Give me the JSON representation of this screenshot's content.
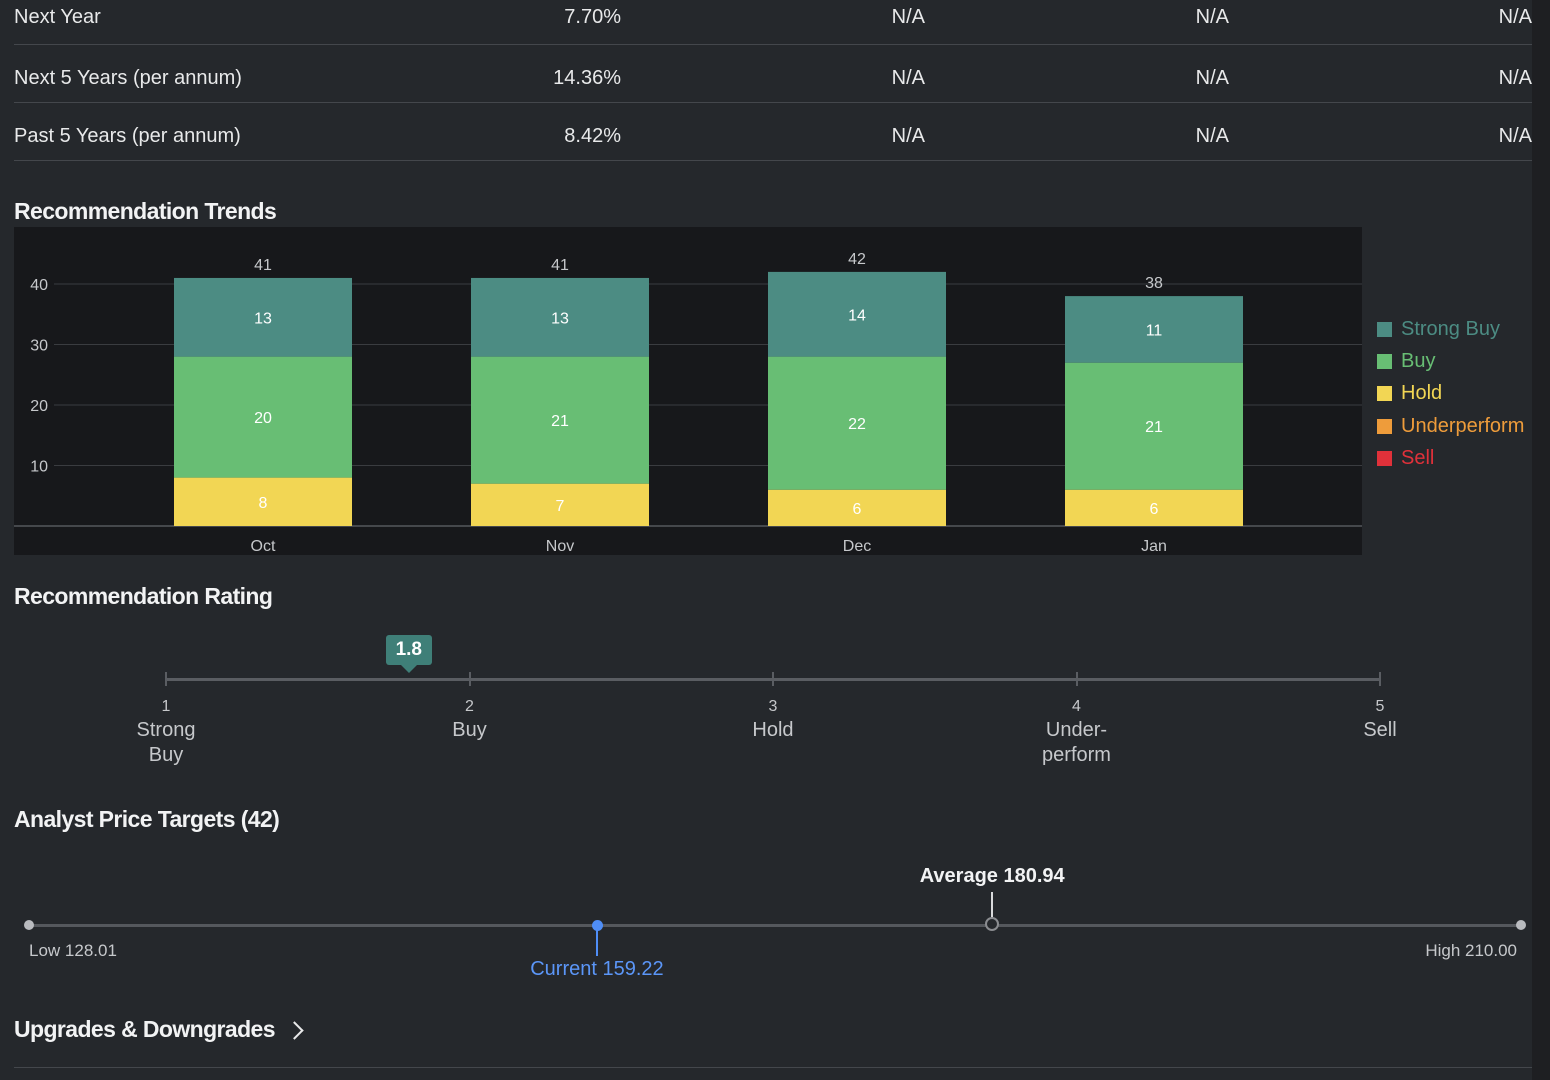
{
  "growth_rows": [
    {
      "label": "Next Year",
      "values": [
        "7.70%",
        "N/A",
        "N/A",
        "N/A"
      ]
    },
    {
      "label": "Next 5 Years (per annum)",
      "values": [
        "14.36%",
        "N/A",
        "N/A",
        "N/A"
      ]
    },
    {
      "label": "Past 5 Years (per annum)",
      "values": [
        "8.42%",
        "N/A",
        "N/A",
        "N/A"
      ]
    }
  ],
  "sections": {
    "trends": "Recommendation Trends",
    "rating": "Recommendation Rating",
    "targets": "Analyst Price Targets (42)",
    "updowns": "Upgrades & Downgrades"
  },
  "chart_data": {
    "type": "bar",
    "stacked": true,
    "title": "Recommendation Trends",
    "categories": [
      "Oct",
      "Nov",
      "Dec",
      "Jan"
    ],
    "series": [
      {
        "name": "Strong Buy",
        "color": "#4c8c83",
        "values": [
          13,
          13,
          14,
          11
        ]
      },
      {
        "name": "Buy",
        "color": "#68be74",
        "values": [
          20,
          21,
          22,
          21
        ]
      },
      {
        "name": "Hold",
        "color": "#f2d654",
        "values": [
          8,
          7,
          6,
          6
        ]
      },
      {
        "name": "Underperform",
        "color": "#ee9c3b",
        "values": [
          0,
          0,
          0,
          0
        ]
      },
      {
        "name": "Sell",
        "color": "#e0313a",
        "values": [
          0,
          0,
          0,
          0
        ]
      }
    ],
    "totals": [
      41,
      41,
      42,
      38
    ],
    "yticks": [
      10,
      20,
      30,
      40
    ],
    "ylim": [
      0,
      45
    ],
    "legend": "right",
    "grid": true
  },
  "legend_colors": {
    "Strong Buy": "#4c8c83",
    "Buy": "#68be74",
    "Hold": "#f2d654",
    "Underperform": "#ee9c3b",
    "Sell": "#e0313a"
  },
  "rating": {
    "value": 1.8,
    "value_label": "1.8",
    "min": 1,
    "max": 5,
    "marker_color": "#3f7f78",
    "scale": [
      {
        "num": "1",
        "lines": [
          "Strong",
          "Buy"
        ]
      },
      {
        "num": "2",
        "lines": [
          "Buy"
        ]
      },
      {
        "num": "3",
        "lines": [
          "Hold"
        ]
      },
      {
        "num": "4",
        "lines": [
          "Under-",
          "perform"
        ]
      },
      {
        "num": "5",
        "lines": [
          "Sell"
        ]
      }
    ]
  },
  "price_targets": {
    "low": 128.01,
    "high": 210.0,
    "current": 159.22,
    "average": 180.94,
    "low_label": "Low 128.01",
    "high_label": "High 210.00",
    "current_label": "Current 159.22",
    "average_label": "Average 180.94",
    "current_color": "#4f8ef7"
  }
}
